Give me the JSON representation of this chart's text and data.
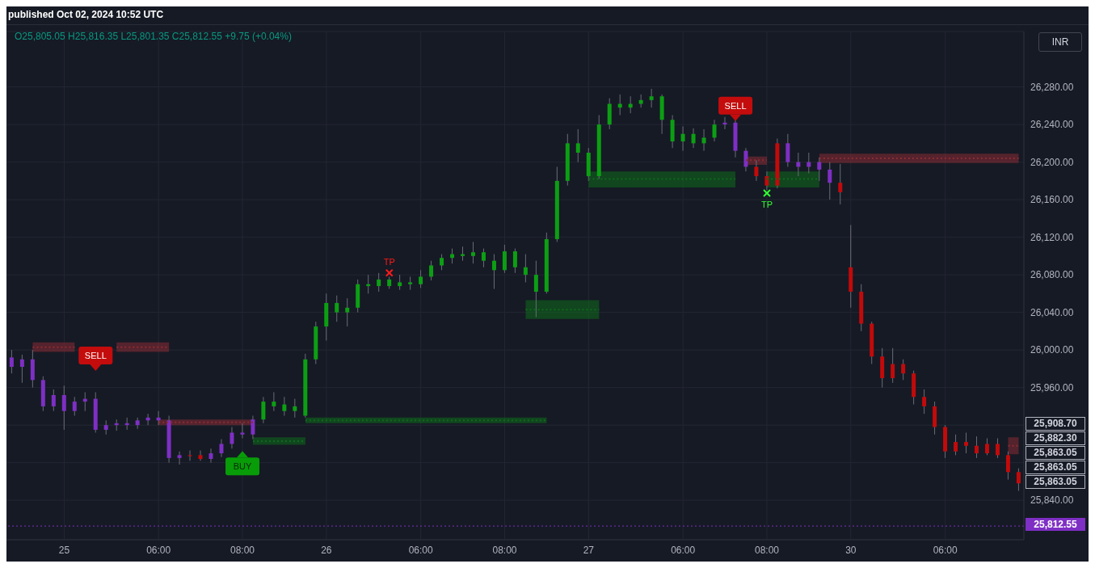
{
  "chart_data": {
    "type": "candlestick",
    "subtitle": "O25,805.05 H25,816.35 L25,801.35 C25,812.55 +9.75 (+0.04%)",
    "annotations": [
      "published Oct 02, 2024 10:52 UTC",
      "INR",
      "25,908.70",
      "25,882.30",
      "25,863.05",
      "25,863.05",
      "25,863.05"
    ],
    "categories": [
      null,
      null,
      null,
      null,
      null,
      "25",
      null,
      null,
      null,
      null,
      null,
      null,
      null,
      null,
      "06:00",
      null,
      null,
      null,
      null,
      null,
      null,
      null,
      "08:00",
      null,
      null,
      null,
      null,
      null,
      null,
      null,
      "26",
      null,
      null,
      null,
      null,
      null,
      null,
      null,
      null,
      "06:00",
      null,
      null,
      null,
      null,
      null,
      null,
      null,
      "08:00",
      null,
      null,
      null,
      null,
      null,
      null,
      null,
      "27",
      null,
      null,
      null,
      null,
      null,
      null,
      null,
      null,
      "06:00",
      null,
      null,
      null,
      null,
      null,
      null,
      null,
      "08:00",
      null,
      null,
      null,
      null,
      null,
      null,
      null,
      "30",
      null,
      null,
      null,
      null,
      null,
      null,
      null,
      null,
      "06:00",
      null,
      null,
      null,
      null,
      null,
      null,
      null
    ],
    "ohlc": [
      [
        25992,
        26000,
        25975,
        25982
      ],
      [
        25982,
        25995,
        25965,
        25990
      ],
      [
        25990,
        26000,
        25960,
        25968
      ],
      [
        25968,
        25972,
        25935,
        25940
      ],
      [
        25940,
        25958,
        25935,
        25952
      ],
      [
        25952,
        25962,
        25915,
        25935
      ],
      [
        25935,
        25950,
        25930,
        25945
      ],
      [
        25945,
        25955,
        25935,
        25948
      ],
      [
        25948,
        25955,
        25912,
        25915
      ],
      [
        25915,
        25925,
        25910,
        25920
      ],
      [
        25920,
        25926,
        25914,
        25922
      ],
      [
        25922,
        25928,
        25915,
        25920
      ],
      [
        25920,
        25928,
        25916,
        25925
      ],
      [
        25925,
        25932,
        25920,
        25928
      ],
      [
        25928,
        25935,
        25920,
        25925
      ],
      [
        25925,
        25930,
        25880,
        25885
      ],
      [
        25885,
        25892,
        25878,
        25888
      ],
      [
        25888,
        25893,
        25882,
        25887
      ],
      [
        25888,
        25893,
        25882,
        25884
      ],
      [
        25884,
        25895,
        25880,
        25890
      ],
      [
        25890,
        25905,
        25886,
        25900
      ],
      [
        25900,
        25918,
        25895,
        25912
      ],
      [
        25912,
        25922,
        25906,
        25910
      ],
      [
        25910,
        25930,
        25905,
        25926
      ],
      [
        25926,
        25950,
        25922,
        25945
      ],
      [
        25940,
        25955,
        25935,
        25945
      ],
      [
        25935,
        25950,
        25930,
        25942
      ],
      [
        25935,
        25948,
        25928,
        25940
      ],
      [
        25930,
        25996,
        25928,
        25990
      ],
      [
        25990,
        26030,
        25985,
        26025
      ],
      [
        26025,
        26060,
        26010,
        26050
      ],
      [
        26040,
        26058,
        26030,
        26050
      ],
      [
        26040,
        26055,
        26025,
        26045
      ],
      [
        26045,
        26075,
        26040,
        26070
      ],
      [
        26068,
        26080,
        26060,
        26070
      ],
      [
        26068,
        26082,
        26062,
        26075
      ],
      [
        26068,
        26078,
        26065,
        26075
      ],
      [
        26068,
        26080,
        26064,
        26072
      ],
      [
        26070,
        26078,
        26064,
        26072
      ],
      [
        26070,
        26085,
        26066,
        26078
      ],
      [
        26078,
        26095,
        26074,
        26090
      ],
      [
        26090,
        26102,
        26085,
        26098
      ],
      [
        26098,
        26108,
        26092,
        26102
      ],
      [
        26100,
        26110,
        26095,
        26102
      ],
      [
        26100,
        26115,
        26092,
        26104
      ],
      [
        26095,
        26108,
        26088,
        26104
      ],
      [
        26085,
        26102,
        26065,
        26095
      ],
      [
        26085,
        26112,
        26082,
        26105
      ],
      [
        26088,
        26108,
        26082,
        26105
      ],
      [
        26080,
        26102,
        26072,
        26088
      ],
      [
        26062,
        26095,
        26035,
        26080
      ],
      [
        26062,
        26125,
        26060,
        26118
      ],
      [
        26118,
        26195,
        26115,
        26180
      ],
      [
        26180,
        26230,
        26175,
        26220
      ],
      [
        26210,
        26235,
        26200,
        26220
      ],
      [
        26185,
        26215,
        26180,
        26210
      ],
      [
        26185,
        26250,
        26182,
        26240
      ],
      [
        26240,
        26268,
        26235,
        26262
      ],
      [
        26258,
        26272,
        26250,
        26262
      ],
      [
        26258,
        26270,
        26252,
        26262
      ],
      [
        26262,
        26272,
        26258,
        26266
      ],
      [
        26266,
        26278,
        26258,
        26270
      ],
      [
        26245,
        26272,
        26230,
        26270
      ],
      [
        26222,
        26250,
        26215,
        26245
      ],
      [
        26222,
        26238,
        26212,
        26230
      ],
      [
        26220,
        26236,
        26215,
        26230
      ],
      [
        26220,
        26235,
        26212,
        26226
      ],
      [
        26226,
        26245,
        26222,
        26240
      ],
      [
        26240,
        26248,
        26235,
        26242
      ],
      [
        26242,
        26245,
        26205,
        26212
      ],
      [
        26212,
        26215,
        26190,
        26195
      ],
      [
        26195,
        26202,
        26180,
        26185
      ],
      [
        26185,
        26190,
        26170,
        26175
      ],
      [
        26220,
        26225,
        26172,
        26175
      ],
      [
        26220,
        26230,
        26195,
        26200
      ],
      [
        26200,
        26210,
        26185,
        26195
      ],
      [
        26195,
        26210,
        26188,
        26200
      ],
      [
        26200,
        26205,
        26180,
        26192
      ],
      [
        26192,
        26200,
        26160,
        26178
      ],
      [
        26178,
        26198,
        26155,
        26168
      ],
      [
        26088,
        26133,
        26045,
        26062
      ],
      [
        26062,
        26070,
        26020,
        26028
      ],
      [
        26028,
        26030,
        25985,
        25993
      ],
      [
        25993,
        26002,
        25960,
        25970
      ],
      [
        25985,
        26002,
        25965,
        25970
      ],
      [
        25985,
        25990,
        25968,
        25975
      ],
      [
        25975,
        25978,
        25942,
        25950
      ],
      [
        25950,
        25958,
        25932,
        25940
      ],
      [
        25940,
        25945,
        25910,
        25918
      ],
      [
        25918,
        25920,
        25885,
        25892
      ],
      [
        25902,
        25910,
        25888,
        25892
      ],
      [
        25902,
        25912,
        25890,
        25898
      ],
      [
        25898,
        25908,
        25885,
        25890
      ],
      [
        25900,
        25906,
        25888,
        25890
      ],
      [
        25900,
        25906,
        25885,
        25888
      ],
      [
        25888,
        25892,
        25862,
        25870
      ],
      [
        25870,
        25874,
        25850,
        25858
      ]
    ],
    "colors": [
      "#7e2fc4",
      "#7e2fc4",
      "#7e2fc4",
      "#7e2fc4",
      "#7e2fc4",
      "#7e2fc4",
      "#7e2fc4",
      "#7e2fc4",
      "#7e2fc4",
      "#7e2fc4",
      "#7e2fc4",
      "#7e2fc4",
      "#7e2fc4",
      "#7e2fc4",
      "#7e2fc4",
      "#7e2fc4",
      "#7e2fc4",
      "#c20a0a",
      "#c20a0a",
      "#7e2fc4",
      "#7e2fc4",
      "#7e2fc4",
      "#7e2fc4",
      "#7e2fc4",
      "#0c9f13",
      "#0c9f13",
      "#0c9f13",
      "#0c9f13",
      "#0c9f13",
      "#0c9f13",
      "#0c9f13",
      "#0c9f13",
      "#0c9f13",
      "#0c9f13",
      "#0c9f13",
      "#0c9f13",
      "#0c9f13",
      "#0c9f13",
      "#0c9f13",
      "#0c9f13",
      "#0c9f13",
      "#0c9f13",
      "#0c9f13",
      "#0c9f13",
      "#0c9f13",
      "#0c9f13",
      "#0c9f13",
      "#0c9f13",
      "#0c9f13",
      "#0c9f13",
      "#0c9f13",
      "#0c9f13",
      "#0c9f13",
      "#0c9f13",
      "#0c9f13",
      "#0c9f13",
      "#0c9f13",
      "#0c9f13",
      "#0c9f13",
      "#0c9f13",
      "#0c9f13",
      "#0c9f13",
      "#0c9f13",
      "#0c9f13",
      "#0c9f13",
      "#0c9f13",
      "#0c9f13",
      "#0c9f13",
      "#7e2fc4",
      "#7e2fc4",
      "#7e2fc4",
      "#c20a0a",
      "#c20a0a",
      "#c20a0a",
      "#7e2fc4",
      "#7e2fc4",
      "#7e2fc4",
      "#7e2fc4",
      "#7e2fc4",
      "#c20a0a",
      "#c20a0a",
      "#c20a0a",
      "#c20a0a",
      "#c20a0a",
      "#c20a0a",
      "#c20a0a",
      "#c20a0a",
      "#c20a0a",
      "#c20a0a",
      "#c20a0a",
      "#c20a0a",
      "#c20a0a",
      "#c20a0a",
      "#c20a0a",
      "#c20a0a",
      "#c20a0a",
      "#c20a0a"
    ],
    "ylim": [
      25798,
      26339
    ],
    "yticks": [
      {
        "value": 25840,
        "label": "25,840.00"
      },
      {
        "value": 25880,
        "label": null
      },
      {
        "value": 25920,
        "label": null
      },
      {
        "value": 25960,
        "label": "25,960.00"
      },
      {
        "value": 26000,
        "label": "26,000.00"
      },
      {
        "value": 26040,
        "label": "26,040.00"
      },
      {
        "value": 26080,
        "label": "26,080.00"
      },
      {
        "value": 26120,
        "label": "26,120.00"
      },
      {
        "value": 26160,
        "label": "26,160.00"
      },
      {
        "value": 26200,
        "label": "26,200.00"
      },
      {
        "value": 26240,
        "label": "26,240.00"
      },
      {
        "value": 26280,
        "label": "26,280.00"
      }
    ],
    "grid": true,
    "series": [
      {
        "type": "line",
        "color": "#8b2c34",
        "line_style": "dotted",
        "values": [
          null,
          null,
          26003,
          26003,
          26003,
          26003,
          26003,
          null,
          null,
          null,
          26003,
          26003,
          26003,
          26003,
          26003,
          26003,
          null,
          null,
          null,
          null,
          null,
          null,
          null,
          null,
          null,
          null,
          null,
          null,
          null,
          null,
          null,
          null,
          null,
          null,
          null,
          null,
          null,
          null,
          null,
          null,
          null,
          null,
          null,
          null,
          null,
          null,
          null,
          null,
          null,
          null,
          null,
          null,
          null,
          null,
          null,
          null,
          null,
          null,
          null,
          null,
          null,
          null,
          null,
          null,
          null,
          null,
          null,
          null,
          null,
          null,
          26202,
          26202,
          26202,
          null,
          null,
          null,
          null,
          null,
          null,
          null,
          null,
          null,
          null,
          null,
          null,
          null,
          null,
          null,
          null,
          null,
          null,
          null,
          null,
          null,
          null,
          25898,
          25898
        ],
        "lower": [
          null,
          null,
          25998,
          25998,
          25998,
          25998,
          25998,
          null,
          null,
          null,
          25998,
          25998,
          25998,
          25998,
          25998,
          25998,
          null,
          null,
          null,
          null,
          null,
          null,
          null,
          null,
          null,
          null,
          null,
          null,
          null,
          null,
          null,
          null,
          null,
          null,
          null,
          null,
          null,
          null,
          null,
          null,
          null,
          null,
          null,
          null,
          null,
          null,
          null,
          null,
          null,
          null,
          null,
          null,
          null,
          null,
          null,
          null,
          null,
          null,
          null,
          null,
          null,
          null,
          null,
          null,
          null,
          null,
          null,
          null,
          null,
          null,
          26197,
          26197,
          26197,
          null,
          null,
          null,
          null,
          null,
          null,
          null,
          null,
          null,
          null,
          null,
          null,
          null,
          null,
          null,
          null,
          null,
          null,
          null,
          null,
          null,
          null,
          25889,
          25889
        ],
        "upper": [
          null,
          null,
          26008,
          26008,
          26008,
          26008,
          26008,
          null,
          null,
          null,
          26008,
          26008,
          26008,
          26008,
          26008,
          26008,
          null,
          null,
          null,
          null,
          null,
          null,
          null,
          null,
          null,
          null,
          null,
          null,
          null,
          null,
          null,
          null,
          null,
          null,
          null,
          null,
          null,
          null,
          null,
          null,
          null,
          null,
          null,
          null,
          null,
          null,
          null,
          null,
          null,
          null,
          null,
          null,
          null,
          null,
          null,
          null,
          null,
          null,
          null,
          null,
          null,
          null,
          null,
          null,
          null,
          null,
          null,
          null,
          null,
          null,
          26206,
          26206,
          26206,
          null,
          null,
          null,
          null,
          null,
          null,
          null,
          null,
          null,
          null,
          null,
          null,
          null,
          null,
          null,
          null,
          null,
          null,
          null,
          null,
          null,
          null,
          25907,
          25907
        ]
      },
      {
        "type": "line",
        "color": "#8b2c34",
        "line_style": "dotted",
        "values": [
          null,
          null,
          null,
          null,
          null,
          null,
          null,
          null,
          null,
          null,
          null,
          null,
          null,
          null,
          25923,
          25923,
          25923,
          25923,
          25923,
          25923,
          25923,
          25923,
          25923,
          25923,
          null,
          null,
          null,
          null,
          null,
          null,
          null,
          null,
          null,
          null,
          null,
          null,
          null,
          null,
          null,
          null,
          null,
          null,
          null,
          null,
          null,
          null,
          null,
          null,
          null,
          null,
          null,
          null,
          null,
          null,
          null,
          null,
          null,
          null,
          null,
          null,
          null,
          null,
          null,
          null,
          null,
          null,
          null,
          null,
          null,
          null,
          null,
          null,
          null,
          null,
          null,
          null,
          null,
          26204,
          26204,
          26204,
          26204,
          26204,
          26204,
          26204,
          26204,
          26204,
          26204,
          26204,
          26204,
          26204,
          26204,
          26204,
          26204,
          26204,
          26204,
          26204,
          26204
        ],
        "lower": [
          null,
          null,
          null,
          null,
          null,
          null,
          null,
          null,
          null,
          null,
          null,
          null,
          null,
          null,
          25920,
          25920,
          25920,
          25920,
          25920,
          25920,
          25920,
          25920,
          25920,
          25920,
          null,
          null,
          null,
          null,
          null,
          null,
          null,
          null,
          null,
          null,
          null,
          null,
          null,
          null,
          null,
          null,
          null,
          null,
          null,
          null,
          null,
          null,
          null,
          null,
          null,
          null,
          null,
          null,
          null,
          null,
          null,
          null,
          null,
          null,
          null,
          null,
          null,
          null,
          null,
          null,
          null,
          null,
          null,
          null,
          null,
          null,
          null,
          null,
          null,
          null,
          null,
          null,
          null,
          26199,
          26199,
          26199,
          26199,
          26199,
          26199,
          26199,
          26199,
          26199,
          26199,
          26199,
          26199,
          26199,
          26199,
          26199,
          26199,
          26199,
          26199,
          26199,
          26199
        ],
        "upper": [
          null,
          null,
          null,
          null,
          null,
          null,
          null,
          null,
          null,
          null,
          null,
          null,
          null,
          null,
          25926,
          25926,
          25926,
          25926,
          25926,
          25926,
          25926,
          25926,
          25926,
          25926,
          null,
          null,
          null,
          null,
          null,
          null,
          null,
          null,
          null,
          null,
          null,
          null,
          null,
          null,
          null,
          null,
          null,
          null,
          null,
          null,
          null,
          null,
          null,
          null,
          null,
          null,
          null,
          null,
          null,
          null,
          null,
          null,
          null,
          null,
          null,
          null,
          null,
          null,
          null,
          null,
          null,
          null,
          null,
          null,
          null,
          null,
          null,
          null,
          null,
          null,
          null,
          null,
          null,
          26209,
          26209,
          26209,
          26209,
          26209,
          26209,
          26209,
          26209,
          26209,
          26209,
          26209,
          26209,
          26209,
          26209,
          26209,
          26209,
          26209,
          26209,
          26209,
          26209
        ]
      },
      {
        "type": "line",
        "color": "#0f6b1c",
        "line_style": "dotted",
        "values": [
          null,
          null,
          null,
          null,
          null,
          null,
          null,
          null,
          null,
          null,
          null,
          null,
          null,
          null,
          null,
          null,
          null,
          null,
          null,
          null,
          null,
          null,
          null,
          25903,
          25903,
          25903,
          25903,
          25903,
          25903,
          null,
          null,
          null,
          null,
          null,
          null,
          null,
          null,
          null,
          null,
          null,
          null,
          null,
          null,
          null,
          null,
          null,
          null,
          null,
          null,
          26043,
          26043,
          26043,
          26043,
          26043,
          26043,
          26043,
          26043,
          null,
          null,
          null,
          null,
          null,
          null,
          null,
          null,
          null,
          null,
          null,
          null,
          null,
          null,
          null,
          26182,
          26182,
          26182,
          26182,
          26182,
          26182,
          null,
          null,
          null,
          null,
          null,
          null,
          null,
          null,
          null,
          null,
          null,
          null,
          null,
          null,
          null,
          null,
          null,
          null,
          null
        ],
        "lower": [
          null,
          null,
          null,
          null,
          null,
          null,
          null,
          null,
          null,
          null,
          null,
          null,
          null,
          null,
          null,
          null,
          null,
          null,
          null,
          null,
          null,
          null,
          null,
          25899,
          25899,
          25899,
          25899,
          25899,
          25899,
          null,
          null,
          null,
          null,
          null,
          null,
          null,
          null,
          null,
          null,
          null,
          null,
          null,
          null,
          null,
          null,
          null,
          null,
          null,
          null,
          26033,
          26033,
          26033,
          26033,
          26033,
          26033,
          26033,
          26033,
          null,
          null,
          null,
          null,
          null,
          null,
          null,
          null,
          null,
          null,
          null,
          null,
          null,
          null,
          null,
          26173,
          26173,
          26173,
          26173,
          26173,
          26173,
          null,
          null,
          null,
          null,
          null,
          null,
          null,
          null,
          null,
          null,
          null,
          null,
          null,
          null,
          null,
          null,
          null,
          null,
          null
        ],
        "upper": [
          null,
          null,
          null,
          null,
          null,
          null,
          null,
          null,
          null,
          null,
          null,
          null,
          null,
          null,
          null,
          null,
          null,
          null,
          null,
          null,
          null,
          null,
          null,
          25907,
          25907,
          25907,
          25907,
          25907,
          25907,
          null,
          null,
          null,
          null,
          null,
          null,
          null,
          null,
          null,
          null,
          null,
          null,
          null,
          null,
          null,
          null,
          null,
          null,
          null,
          null,
          26053,
          26053,
          26053,
          26053,
          26053,
          26053,
          26053,
          26053,
          null,
          null,
          null,
          null,
          null,
          null,
          null,
          null,
          null,
          null,
          null,
          null,
          null,
          null,
          null,
          26190,
          26190,
          26190,
          26190,
          26190,
          26190,
          null,
          null,
          null,
          null,
          null,
          null,
          null,
          null,
          null,
          null,
          null,
          null,
          null,
          null,
          null,
          null,
          null,
          null,
          null
        ]
      },
      {
        "type": "line",
        "color": "#0f6b1c",
        "line_style": "dotted",
        "values": [
          null,
          null,
          null,
          null,
          null,
          null,
          null,
          null,
          null,
          null,
          null,
          null,
          null,
          null,
          null,
          null,
          null,
          null,
          null,
          null,
          null,
          null,
          null,
          null,
          null,
          null,
          null,
          null,
          25925,
          25925,
          25925,
          25925,
          25925,
          25925,
          25925,
          25925,
          25925,
          25925,
          25925,
          25925,
          25925,
          25925,
          25925,
          25925,
          25925,
          25925,
          25925,
          25925,
          25925,
          25925,
          25925,
          25925,
          null,
          null,
          null,
          26182,
          26182,
          26182,
          26182,
          26182,
          26182,
          26182,
          26182,
          26182,
          26182,
          26182,
          26182,
          26182,
          26182,
          26182,
          null,
          null,
          null,
          null,
          null,
          null,
          null,
          null,
          null,
          null,
          null,
          null,
          null,
          null,
          null,
          null,
          null,
          null,
          null,
          null,
          null,
          null,
          null,
          null,
          null,
          null,
          null
        ],
        "lower": [
          null,
          null,
          null,
          null,
          null,
          null,
          null,
          null,
          null,
          null,
          null,
          null,
          null,
          null,
          null,
          null,
          null,
          null,
          null,
          null,
          null,
          null,
          null,
          null,
          null,
          null,
          null,
          null,
          25922,
          25922,
          25922,
          25922,
          25922,
          25922,
          25922,
          25922,
          25922,
          25922,
          25922,
          25922,
          25922,
          25922,
          25922,
          25922,
          25922,
          25922,
          25922,
          25922,
          25922,
          25922,
          25922,
          25922,
          null,
          null,
          null,
          26173,
          26173,
          26173,
          26173,
          26173,
          26173,
          26173,
          26173,
          26173,
          26173,
          26173,
          26173,
          26173,
          26173,
          26173,
          null,
          null,
          null,
          null,
          null,
          null,
          null,
          null,
          null,
          null,
          null,
          null,
          null,
          null,
          null,
          null,
          null,
          null,
          null,
          null,
          null,
          null,
          null,
          null,
          null,
          null,
          null
        ],
        "upper": [
          null,
          null,
          null,
          null,
          null,
          null,
          null,
          null,
          null,
          null,
          null,
          null,
          null,
          null,
          null,
          null,
          null,
          null,
          null,
          null,
          null,
          null,
          null,
          null,
          null,
          null,
          null,
          null,
          25928,
          25928,
          25928,
          25928,
          25928,
          25928,
          25928,
          25928,
          25928,
          25928,
          25928,
          25928,
          25928,
          25928,
          25928,
          25928,
          25928,
          25928,
          25928,
          25928,
          25928,
          25928,
          25928,
          25928,
          null,
          null,
          null,
          26190,
          26190,
          26190,
          26190,
          26190,
          26190,
          26190,
          26190,
          26190,
          26190,
          26190,
          26190,
          26190,
          26190,
          26190,
          null,
          null,
          null,
          null,
          null,
          null,
          null,
          null,
          null,
          null,
          null,
          null,
          null,
          null,
          null,
          null,
          null,
          null,
          null,
          null,
          null,
          null,
          null,
          null,
          null,
          null,
          null
        ]
      },
      {
        "type": "scatter",
        "name": "SELL",
        "color": "#c40c0c",
        "values": [
          null,
          null,
          null,
          null,
          null,
          null,
          null,
          null,
          25980,
          null,
          null,
          null,
          null,
          null,
          null,
          null,
          null,
          null,
          null,
          null,
          null,
          null,
          null,
          null,
          null,
          null,
          null,
          null,
          null,
          null,
          null,
          null,
          null,
          null,
          null,
          null,
          null,
          null,
          null,
          null,
          null,
          null,
          null,
          null,
          null,
          null,
          null,
          null,
          null,
          null,
          null,
          null,
          null,
          null,
          null,
          null,
          null,
          null,
          null,
          null,
          null,
          null,
          null,
          null,
          null,
          null,
          null,
          null,
          null,
          26246,
          null,
          null,
          null,
          null,
          null,
          null,
          null,
          null,
          null,
          null,
          null,
          null,
          null,
          null,
          null,
          null,
          null,
          null,
          null,
          null,
          null,
          null,
          null,
          null,
          null,
          null,
          null
        ]
      },
      {
        "type": "scatter",
        "name": "BUY",
        "color": "#089c08",
        "values": [
          null,
          null,
          null,
          null,
          null,
          null,
          null,
          null,
          null,
          null,
          null,
          null,
          null,
          null,
          null,
          null,
          null,
          null,
          null,
          null,
          null,
          null,
          25890,
          null,
          null,
          null,
          null,
          null,
          null,
          null,
          null,
          null,
          null,
          null,
          null,
          null,
          null,
          null,
          null,
          null,
          null,
          null,
          null,
          null,
          null,
          null,
          null,
          null,
          null,
          null,
          null,
          null,
          null,
          null,
          null,
          null,
          null,
          null,
          null,
          null,
          null,
          null,
          null,
          null,
          null,
          null,
          null,
          null,
          null,
          null,
          null,
          null,
          null,
          null,
          null,
          null,
          null,
          null,
          null,
          null,
          null,
          null,
          null,
          null,
          null,
          null,
          null,
          null,
          null,
          null,
          null,
          null,
          null,
          null,
          null,
          null,
          null
        ]
      },
      {
        "type": "scatter",
        "name": "TP",
        "color": "#ff1a1a",
        "marker": "cross",
        "values": [
          null,
          null,
          null,
          null,
          null,
          null,
          null,
          null,
          null,
          null,
          null,
          null,
          null,
          null,
          null,
          null,
          null,
          null,
          null,
          null,
          null,
          null,
          null,
          null,
          null,
          null,
          null,
          null,
          null,
          null,
          null,
          null,
          null,
          null,
          null,
          null,
          26082,
          null,
          null,
          null,
          null,
          null,
          null,
          null,
          null,
          null,
          null,
          null,
          null,
          null,
          null,
          null,
          null,
          null,
          null,
          null,
          null,
          null,
          null,
          null,
          null,
          null,
          null,
          null,
          null,
          null,
          null,
          null,
          null,
          null,
          null,
          null,
          null,
          null,
          null,
          null,
          null,
          null,
          null,
          null,
          null,
          null,
          null,
          null,
          null,
          null,
          null,
          null,
          null,
          null,
          null,
          null,
          null,
          null,
          null,
          null,
          null
        ]
      },
      {
        "type": "scatter",
        "name": "TP",
        "color": "#33ff33",
        "marker": "cross",
        "values": [
          null,
          null,
          null,
          null,
          null,
          null,
          null,
          null,
          null,
          null,
          null,
          null,
          null,
          null,
          null,
          null,
          null,
          null,
          null,
          null,
          null,
          null,
          null,
          null,
          null,
          null,
          null,
          null,
          null,
          null,
          null,
          null,
          null,
          null,
          null,
          null,
          null,
          null,
          null,
          null,
          null,
          null,
          null,
          null,
          null,
          null,
          null,
          null,
          null,
          null,
          null,
          null,
          null,
          null,
          null,
          null,
          null,
          null,
          null,
          null,
          null,
          null,
          null,
          null,
          null,
          null,
          null,
          null,
          null,
          null,
          null,
          null,
          26167,
          null,
          null,
          null,
          null,
          null,
          null,
          null,
          null,
          null,
          null,
          null,
          null,
          null,
          null,
          null,
          null,
          null,
          null,
          null,
          null,
          null,
          null,
          null,
          null
        ]
      }
    ],
    "ref_lines": [
      {
        "axis": "y",
        "value": 25812.55,
        "label": "25,812.55",
        "color": "#7e2fc4",
        "line_style": "dotted"
      }
    ]
  }
}
